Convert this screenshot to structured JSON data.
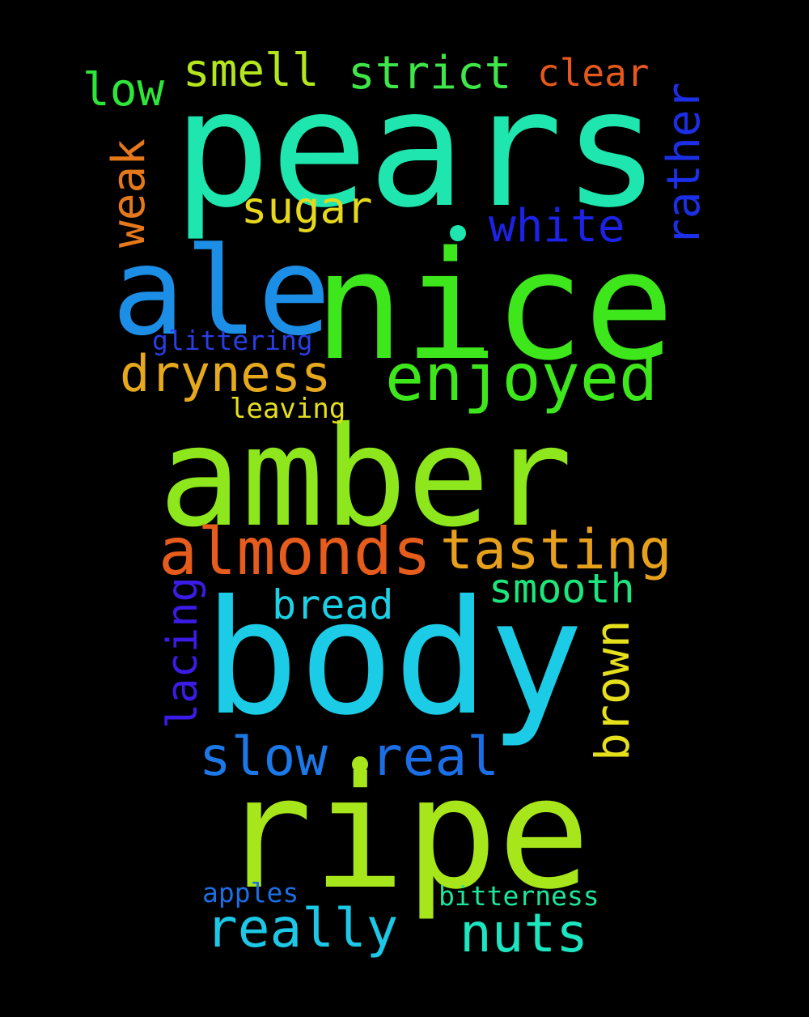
{
  "words": {
    "pears": "pears",
    "nice": "nice",
    "ale": "ale",
    "amber": "amber",
    "body": "body",
    "ripe": "ripe",
    "enjoyed": "enjoyed",
    "almonds": "almonds",
    "tasting": "tasting",
    "dryness": "dryness",
    "smell": "smell",
    "strict": "strict",
    "clear": "clear",
    "low": "low",
    "rather": "rather",
    "sugar": "sugar",
    "white": "white",
    "weak": "weak",
    "glittering": "glittering",
    "leaving": "leaving",
    "bread": "bread",
    "smooth": "smooth",
    "brown": "brown",
    "lacing": "lacing",
    "slow": "slow",
    "real": "real",
    "really": "really",
    "nuts": "nuts",
    "apples": "apples",
    "bitterness": "bitterness"
  },
  "colors": {
    "pears": "#1ee6ae",
    "nice": "#3ee61c",
    "ale": "#1c8ee6",
    "amber": "#8ee61c",
    "body": "#1ccce6",
    "ripe": "#a8e61c",
    "enjoyed": "#3ee61c",
    "almonds": "#e65c1c",
    "tasting": "#e6a01c",
    "dryness": "#e6a81c",
    "smell": "#b4e61c",
    "strict": "#3ee64a",
    "clear": "#e6581c",
    "low": "#2ee63a",
    "rather": "#1c2ee6",
    "sugar": "#e6d81c",
    "white": "#1c22e6",
    "weak": "#e6781c",
    "glittering": "#2a3ee6",
    "leaving": "#e6e01c",
    "bread": "#1cd0e6",
    "smooth": "#1ce67c",
    "brown": "#e6e01c",
    "lacing": "#3a1ce6",
    "slow": "#1c78e6",
    "real": "#1c6ee6",
    "really": "#1cc8e6",
    "nuts": "#1ce6c0",
    "apples": "#1c6ee6",
    "bitterness": "#1ce69a"
  }
}
